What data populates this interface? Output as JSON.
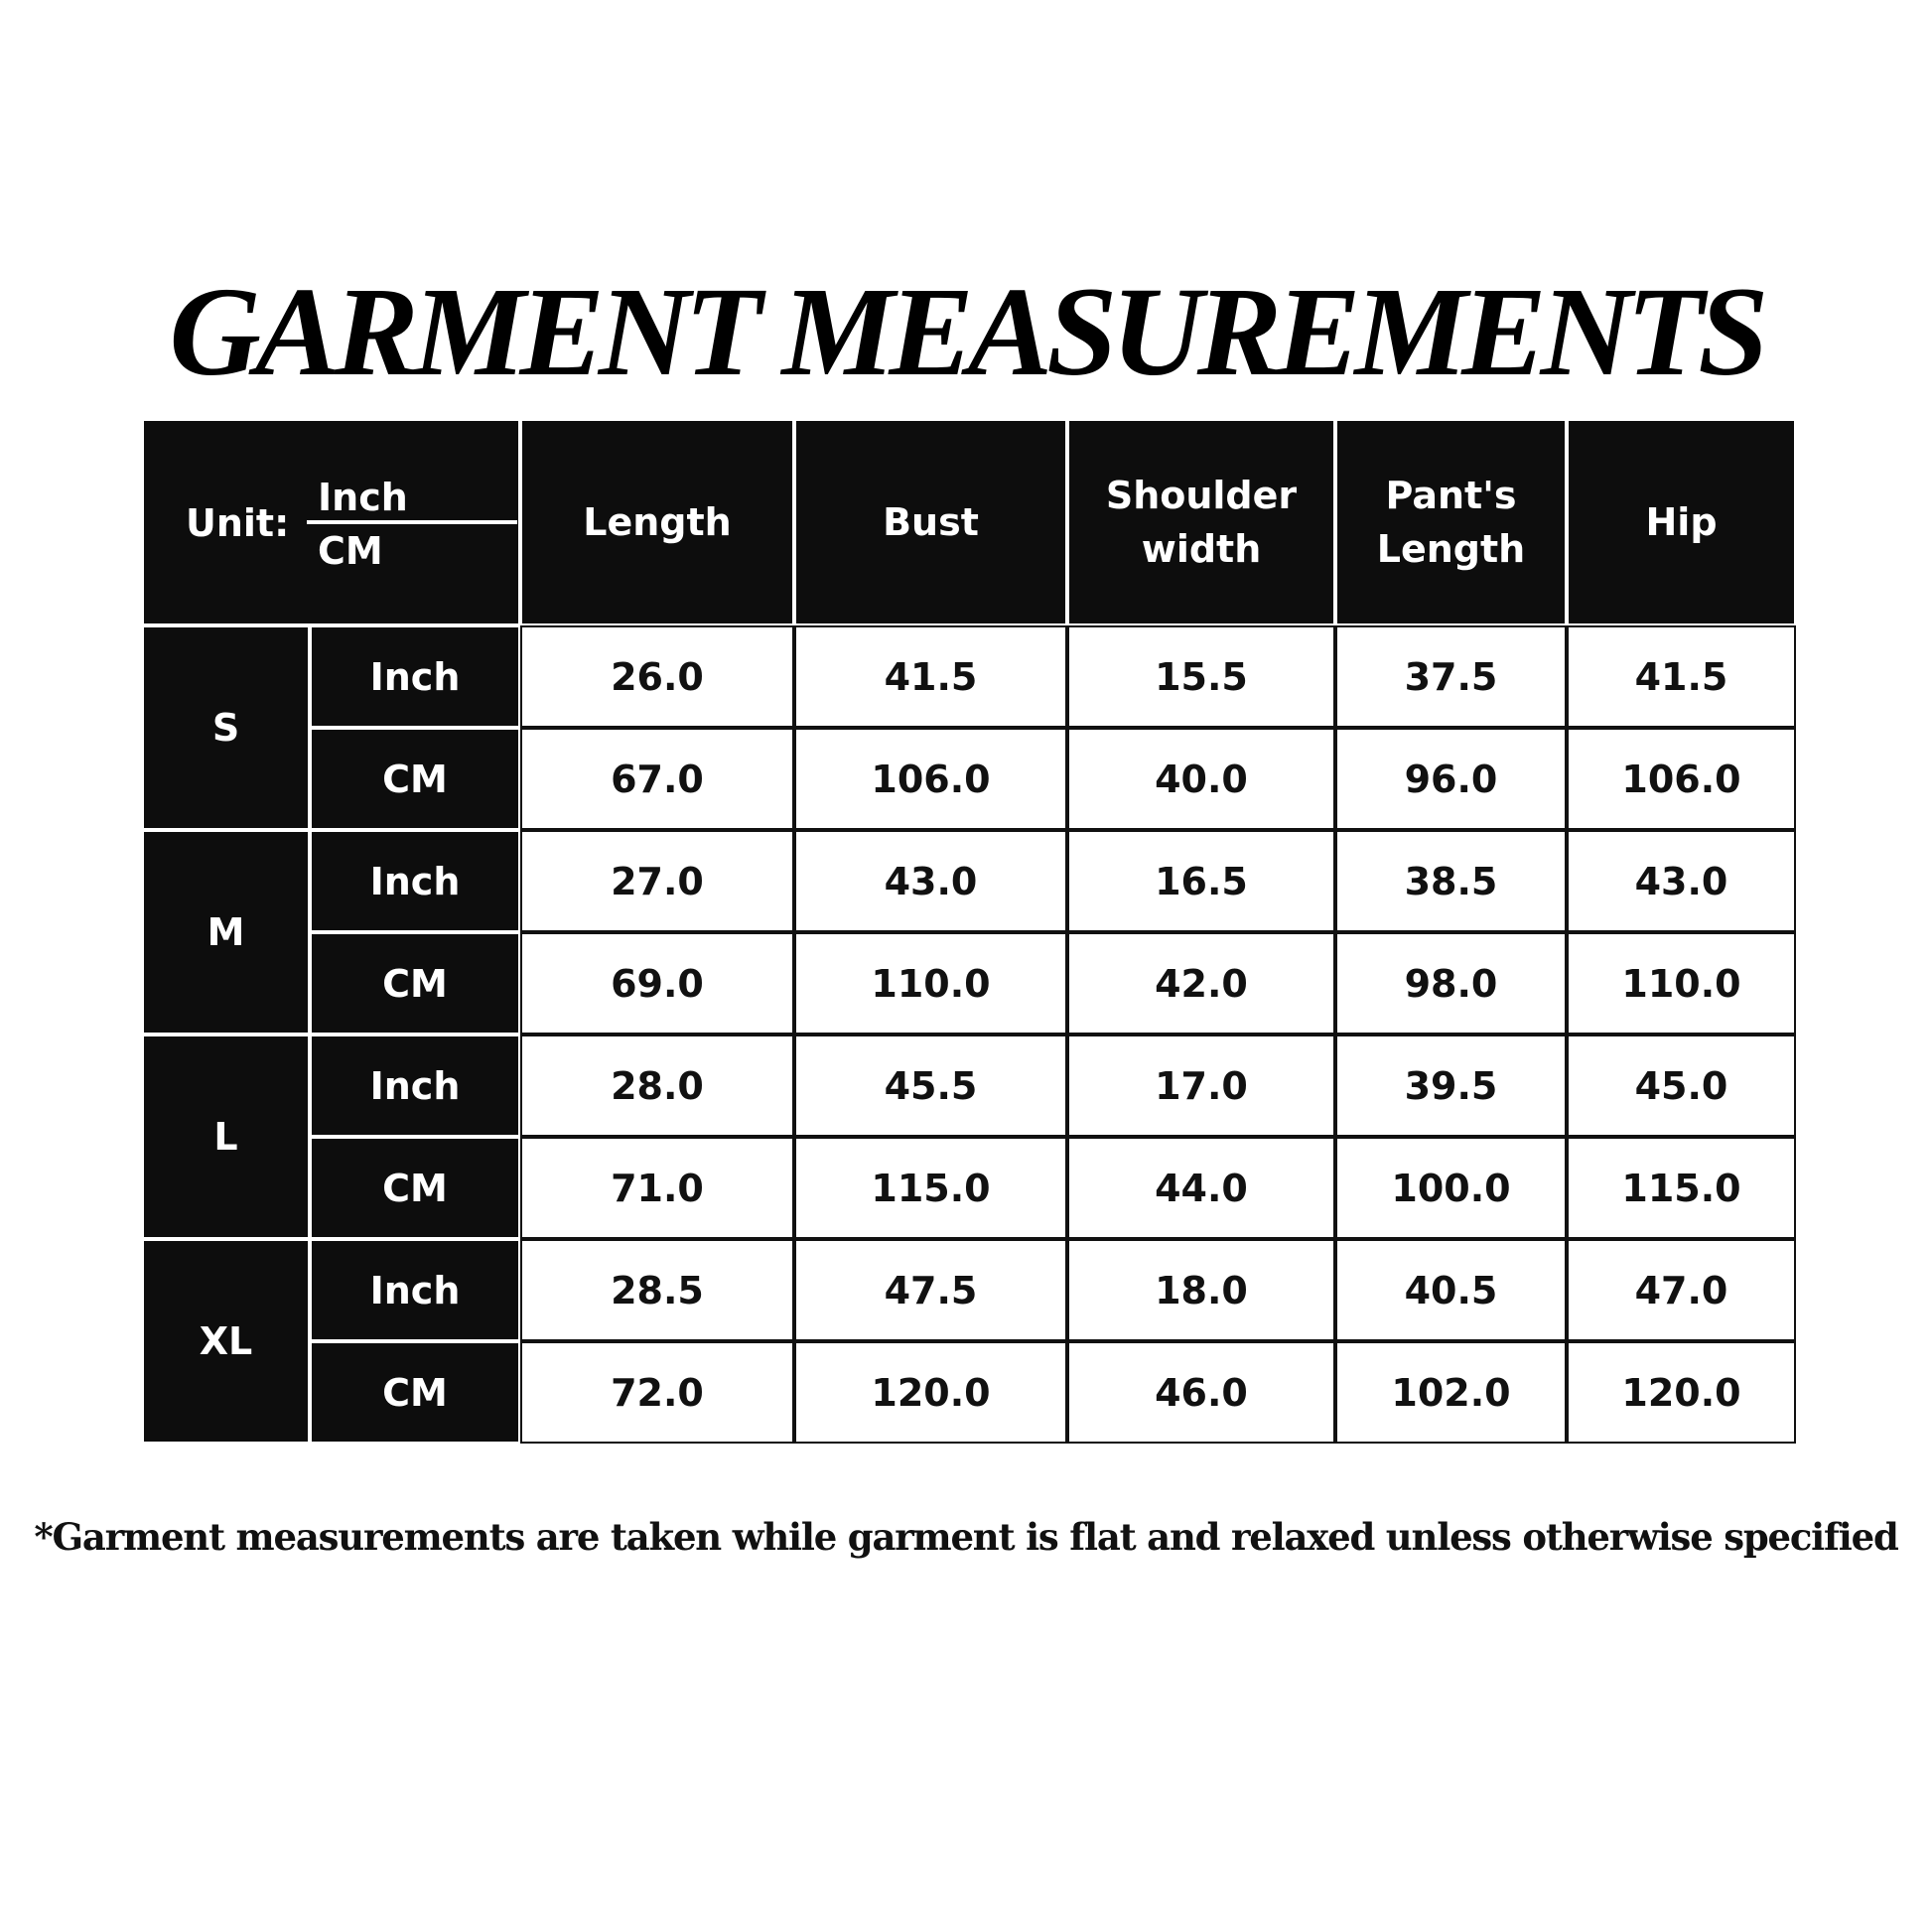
{
  "title": "GARMENT MEASUREMENTS",
  "header": {
    "unit_label": "Unit:",
    "unit_top": "Inch",
    "unit_bottom": "CM",
    "columns": [
      "Length",
      "Bust",
      "Shoulder width",
      "Pant's Length",
      "Hip"
    ]
  },
  "table": {
    "rows": [
      {
        "size": "S",
        "units": [
          "Inch",
          "CM"
        ],
        "values": [
          [
            "26.0",
            "41.5",
            "15.5",
            "37.5",
            "41.5"
          ],
          [
            "67.0",
            "106.0",
            "40.0",
            "96.0",
            "106.0"
          ]
        ]
      },
      {
        "size": "M",
        "units": [
          "Inch",
          "CM"
        ],
        "values": [
          [
            "27.0",
            "43.0",
            "16.5",
            "38.5",
            "43.0"
          ],
          [
            "69.0",
            "110.0",
            "42.0",
            "98.0",
            "110.0"
          ]
        ]
      },
      {
        "size": "L",
        "units": [
          "Inch",
          "CM"
        ],
        "values": [
          [
            "28.0",
            "45.5",
            "17.0",
            "39.5",
            "45.0"
          ],
          [
            "71.0",
            "115.0",
            "44.0",
            "100.0",
            "115.0"
          ]
        ]
      },
      {
        "size": "XL",
        "units": [
          "Inch",
          "CM"
        ],
        "values": [
          [
            "28.5",
            "47.5",
            "18.0",
            "40.5",
            "47.0"
          ],
          [
            "72.0",
            "120.0",
            "46.0",
            "102.0",
            "120.0"
          ]
        ]
      }
    ]
  },
  "footnote": "*Garment measurements are taken while garment is flat and relaxed unless otherwise specified"
}
